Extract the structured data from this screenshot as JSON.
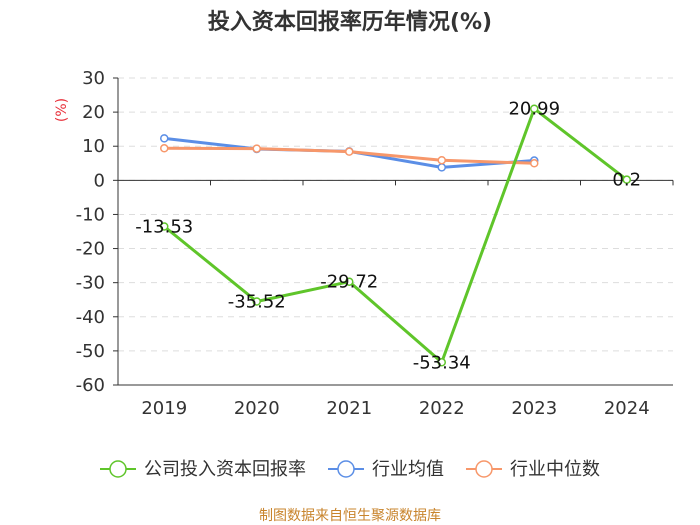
{
  "chart_data": {
    "type": "line",
    "title": "投入资本回报率历年情况(%)",
    "ylabel": "(%)",
    "categories": [
      "2019",
      "2020",
      "2021",
      "2022",
      "2023",
      "2024"
    ],
    "ylim": [
      -60,
      30
    ],
    "yticks": [
      30,
      20,
      10,
      0,
      -10,
      -20,
      -30,
      -40,
      -50,
      -60
    ],
    "grid": true,
    "legend_position": "bottom",
    "series": [
      {
        "name": "公司投入资本回报率",
        "color": "#5fc52a",
        "values": [
          -13.53,
          -35.52,
          -29.72,
          -53.34,
          20.99,
          0.2
        ],
        "labels": [
          "-13.53",
          "-35.52",
          "-29.72",
          "-53.34",
          "20.99",
          "0.2"
        ]
      },
      {
        "name": "行业均值",
        "color": "#5b8ee6",
        "values": [
          12.3,
          9.2,
          8.5,
          3.8,
          5.8,
          null
        ]
      },
      {
        "name": "行业中位数",
        "color": "#f7976a",
        "values": [
          9.4,
          9.3,
          8.4,
          5.9,
          5.0,
          null
        ]
      }
    ]
  },
  "footer": "制图数据来自恒生聚源数据库"
}
